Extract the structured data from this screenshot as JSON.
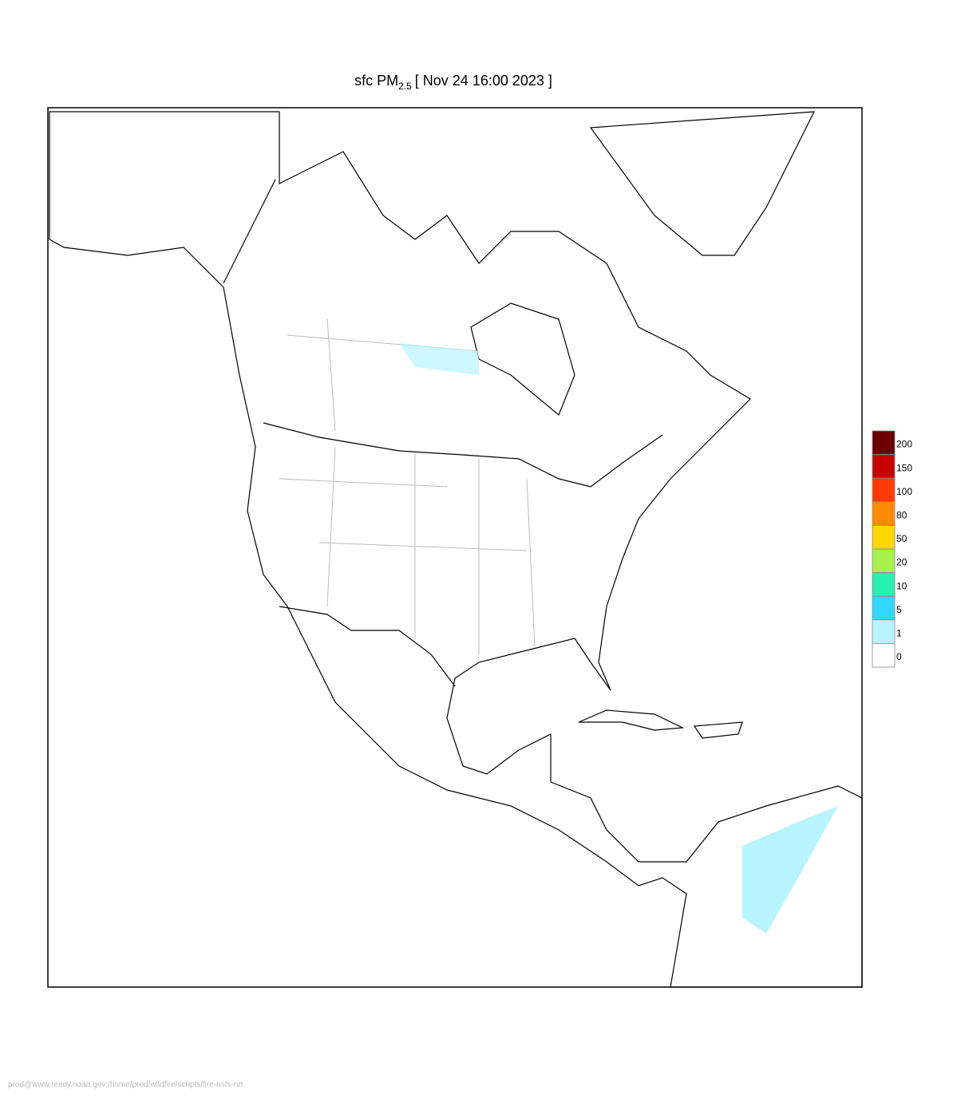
{
  "header": {
    "title_prefix": "sfc PM",
    "title_subscript": "2.5",
    "title_suffix": "[ Nov 24 16:00 2023 ]"
  },
  "legend": {
    "labels": [
      200,
      150,
      100,
      80,
      50,
      20,
      10,
      5,
      1,
      0
    ],
    "colors": [
      "#6b0000",
      "#c80000",
      "#ff3a00",
      "#ff8c00",
      "#ffd800",
      "#a8f050",
      "#28f0b0",
      "#30d8ff",
      "#b8f4ff",
      "#ffffff"
    ]
  },
  "footer": {
    "path": "prod@www.ready.noaa.gov:/home/prod/wildfire/scripts/fire-nsfs-nrt"
  }
}
